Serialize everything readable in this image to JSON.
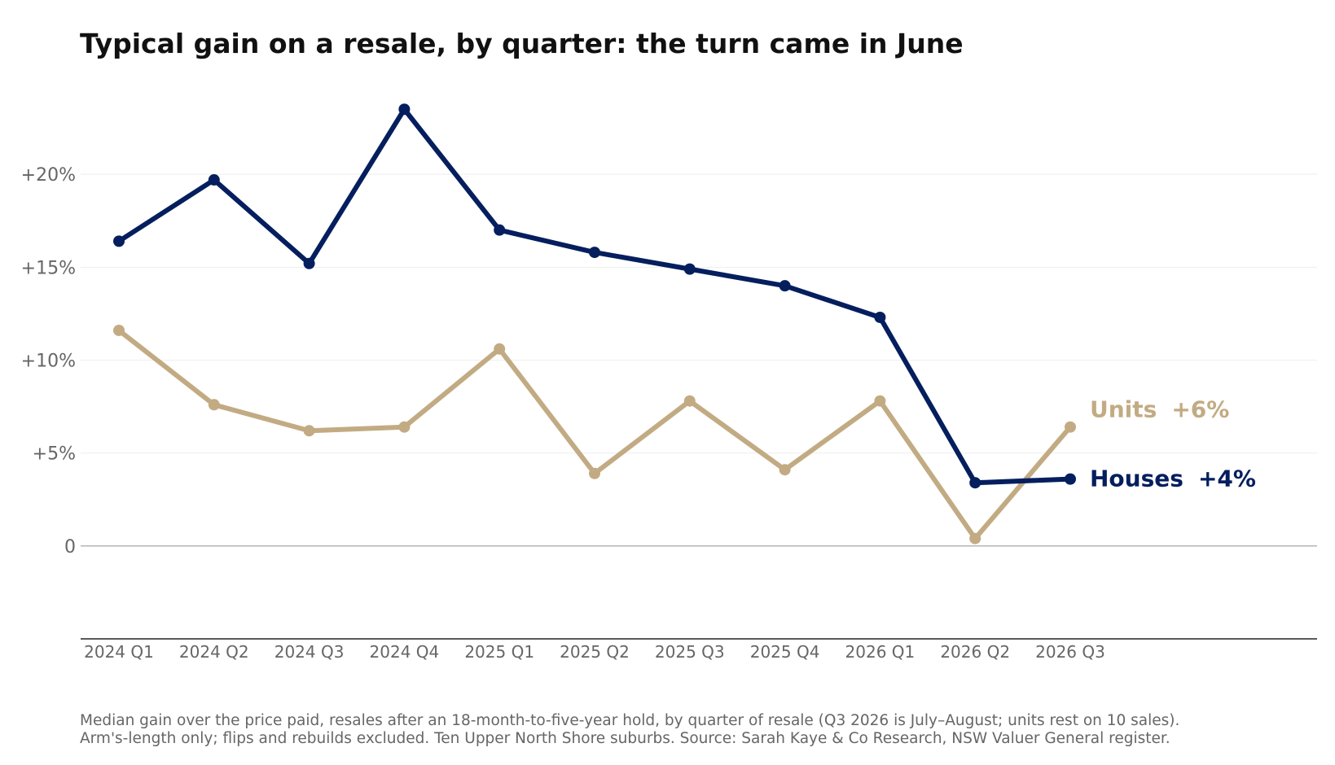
{
  "title": "Typical gain on a resale, by quarter: the turn came in June",
  "footnote": {
    "line1": "Median gain over the price paid, resales after an 18-month-to-five-year hold, by quarter of resale (Q3 2026 is July–August; units rest on 10 sales).",
    "line2": "Arm's-length only; flips and rebuilds excluded. Ten Upper North Shore suburbs. Source: Sarah Kaye & Co Research, NSW Valuer General register."
  },
  "chart_data": {
    "type": "line",
    "title": "Typical gain on a resale, by quarter: the turn came in June",
    "xlabel": "",
    "ylabel": "",
    "categories": [
      "2024 Q1",
      "2024 Q2",
      "2024 Q3",
      "2024 Q4",
      "2025 Q1",
      "2025 Q2",
      "2025 Q3",
      "2025 Q4",
      "2026 Q1",
      "2026 Q2",
      "2026 Q3"
    ],
    "ylim": [
      -5,
      25
    ],
    "yticks": [
      0,
      5,
      10,
      15,
      20
    ],
    "ytick_labels": [
      "0",
      "+5%",
      "+10%",
      "+15%",
      "+20%"
    ],
    "grid": "horizontal",
    "legend": "direct labels at line ends",
    "series": [
      {
        "name": "Houses",
        "end_label": "+4%",
        "color": "#041e5e",
        "values": [
          16.4,
          19.7,
          15.2,
          23.5,
          17.0,
          15.8,
          14.9,
          14.0,
          12.3,
          3.4,
          3.6
        ]
      },
      {
        "name": "Units",
        "end_label": "+6%",
        "color": "#c2ab83",
        "values": [
          11.6,
          7.6,
          6.2,
          6.4,
          10.6,
          3.9,
          7.8,
          4.1,
          7.8,
          0.4,
          6.4
        ]
      }
    ],
    "colors": {
      "grid": "#eeeeee",
      "zero_line": "#bbbbbb",
      "axis": "#222222",
      "tick_text": "#666666"
    }
  }
}
